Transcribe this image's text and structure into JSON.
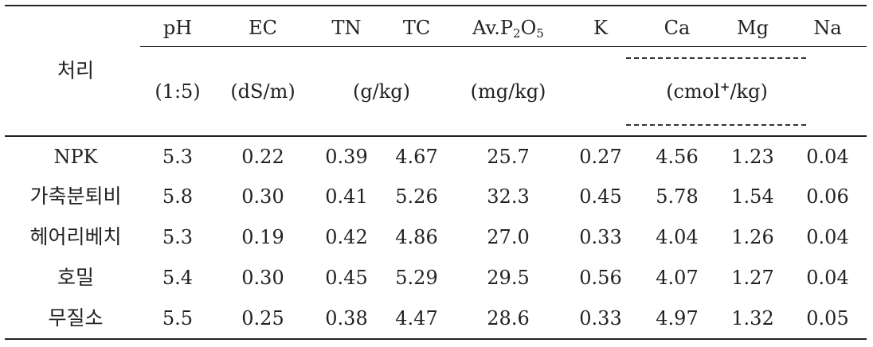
{
  "header": {
    "row_label": "처리",
    "columns": [
      {
        "name": "pH",
        "unit": "(1:5)"
      },
      {
        "name": "EC",
        "unit": "(dS/m)"
      },
      {
        "name": "TN"
      },
      {
        "name": "TC"
      },
      {
        "name_prefix": "Av.P",
        "name_sub1": "2",
        "name_mid": "O",
        "name_sub2": "5",
        "unit": "(mg/kg)"
      },
      {
        "name": "K"
      },
      {
        "name": "Ca"
      },
      {
        "name": "Mg"
      },
      {
        "name": "Na"
      }
    ],
    "unit_tn_tc": "(g/kg)",
    "unit_cation_prefix": "(cmol",
    "unit_cation_sup": "+",
    "unit_cation_suffix": "/kg)"
  },
  "rows": [
    {
      "label": "NPK",
      "values": [
        "5.3",
        "0.22",
        "0.39",
        "4.67",
        "25.7",
        "0.27",
        "4.56",
        "1.23",
        "0.04"
      ]
    },
    {
      "label": "가축분퇴비",
      "values": [
        "5.8",
        "0.30",
        "0.41",
        "5.26",
        "32.3",
        "0.45",
        "5.78",
        "1.54",
        "0.06"
      ]
    },
    {
      "label": "헤어리베치",
      "values": [
        "5.3",
        "0.19",
        "0.42",
        "4.86",
        "27.0",
        "0.33",
        "4.04",
        "1.26",
        "0.04"
      ]
    },
    {
      "label": "호밀",
      "values": [
        "5.4",
        "0.30",
        "0.45",
        "5.29",
        "29.5",
        "0.56",
        "4.07",
        "1.27",
        "0.04"
      ]
    },
    {
      "label": "무질소",
      "values": [
        "5.5",
        "0.25",
        "0.38",
        "4.47",
        "28.6",
        "0.33",
        "4.97",
        "1.32",
        "0.05"
      ]
    }
  ]
}
